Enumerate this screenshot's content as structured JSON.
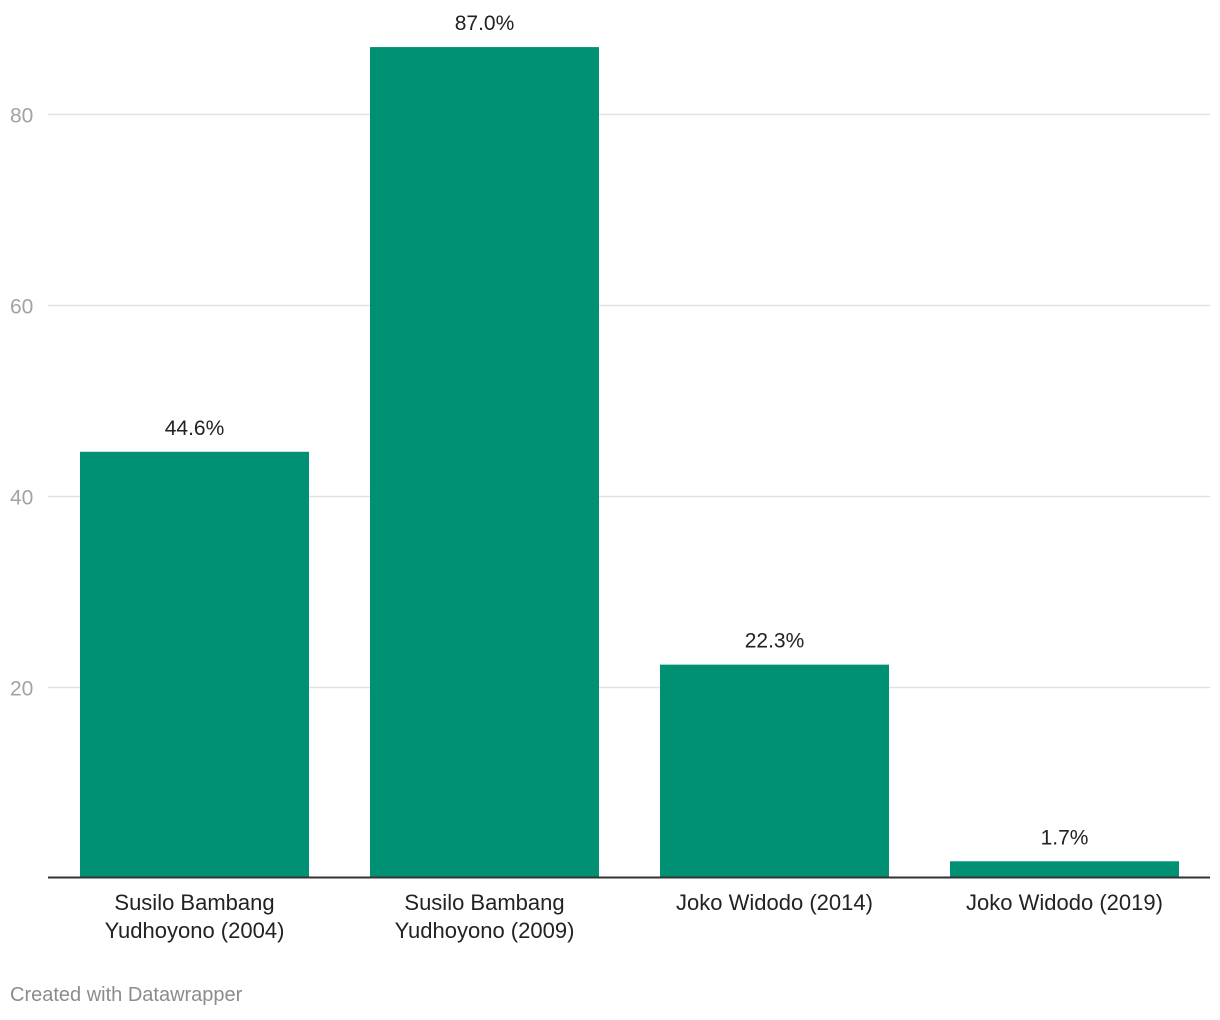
{
  "footer": {
    "credit": "Created with Datawrapper"
  },
  "colors": {
    "bar": "#009073",
    "grid": "#e2e2e2",
    "baseline": "#333333",
    "tick_label": "#a3a3a3",
    "text": "#222222"
  },
  "chart_data": {
    "type": "bar",
    "categories": [
      [
        "Susilo Bambang",
        "Yudhoyono (2004)"
      ],
      [
        "Susilo Bambang",
        "Yudhoyono (2009)"
      ],
      [
        "Joko Widodo (2014)"
      ],
      [
        "Joko Widodo (2019)"
      ]
    ],
    "values": [
      44.6,
      87.0,
      22.3,
      1.7
    ],
    "value_labels": [
      "44.6%",
      "87.0%",
      "22.3%",
      "1.7%"
    ],
    "yticks": [
      20,
      40,
      60,
      80
    ],
    "ylim": [
      0,
      87.0
    ],
    "grid": true,
    "title": "",
    "xlabel": "",
    "ylabel": ""
  }
}
